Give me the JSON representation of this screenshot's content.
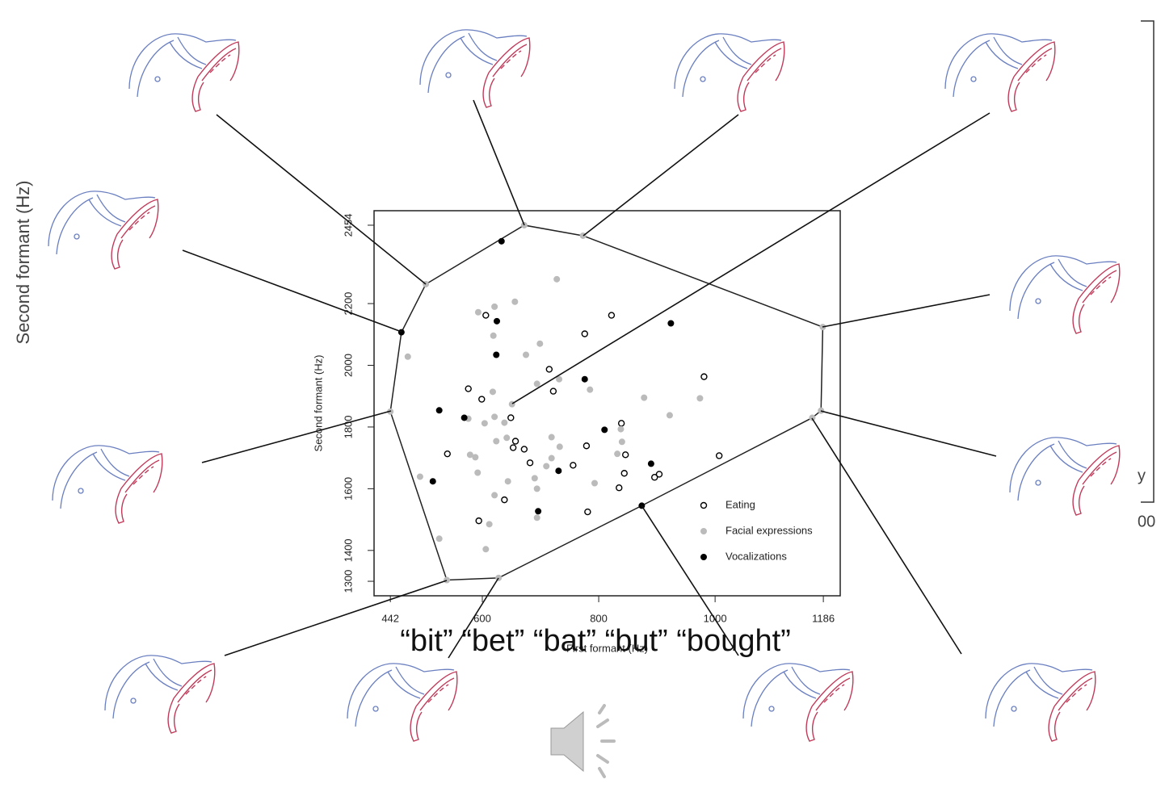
{
  "slide": {
    "background_label": "Second formant (Hz)",
    "words": "“bit” “bet” “bat” “but” “bought”",
    "fragments": [
      "y",
      "00"
    ]
  },
  "chart_data": {
    "type": "scatter",
    "x_label": "First formant (Hz)",
    "y_label": "Second formant (Hz)",
    "xlim": [
      414,
      1215
    ],
    "ylim": [
      1253,
      2501
    ],
    "xticks": [
      442,
      600,
      800,
      1000,
      1186
    ],
    "yticks": [
      1300,
      1400,
      1600,
      1800,
      2000,
      2200,
      2454
    ],
    "legend": "lower right",
    "hull": {
      "color": "#222222",
      "x": [
        503,
        672,
        773,
        1185,
        1182,
        1167,
        874,
        628,
        539,
        442,
        461,
        503
      ],
      "y": [
        2263,
        2454,
        2420,
        2124,
        1853,
        1830,
        1545,
        1311,
        1304,
        1850,
        2107,
        2263
      ]
    },
    "series": [
      {
        "name": "Eating",
        "color": "#000000",
        "marker": "open",
        "x": [
          606,
          576,
          599,
          649,
          540,
          657,
          653,
          672,
          682,
          638,
          594,
          715,
          722,
          756,
          779,
          776,
          822,
          839,
          846,
          844,
          835,
          781,
          896,
          904,
          981,
          1007
        ],
        "y": [
          2162,
          1924,
          1890,
          1830,
          1713,
          1754,
          1733,
          1728,
          1684,
          1564,
          1496,
          1987,
          1916,
          1676,
          1739,
          2102,
          2162,
          1812,
          1710,
          1650,
          1603,
          1525,
          1637,
          1647,
          1963,
          1707
        ]
      },
      {
        "name": "Facial expressions",
        "color": "#bbbbbb",
        "marker": "filled",
        "x": [
          728,
          656,
          621,
          593,
          619,
          699,
          675,
          472,
          651,
          618,
          694,
          732,
          785,
          621,
          638,
          604,
          576,
          878,
          974,
          922,
          838,
          840,
          719,
          733,
          642,
          624,
          579,
          588,
          592,
          644,
          621,
          612,
          606,
          493,
          526,
          694,
          694,
          690,
          710,
          719,
          793,
          832,
          503,
          672,
          773,
          1185,
          1182,
          1167,
          628,
          539,
          442
        ],
        "y": [
          2279,
          2206,
          2190,
          2172,
          2096,
          2070,
          2034,
          2028,
          1874,
          1914,
          1940,
          1955,
          1921,
          1833,
          1814,
          1812,
          1827,
          1895,
          1893,
          1838,
          1793,
          1752,
          1767,
          1736,
          1765,
          1754,
          1710,
          1702,
          1652,
          1624,
          1579,
          1485,
          1404,
          1639,
          1438,
          1506,
          1600,
          1634,
          1673,
          1699,
          1618,
          1713,
          2263,
          2454,
          2420,
          2124,
          1853,
          1830,
          1311,
          1304,
          1850
        ]
      },
      {
        "name": "Vocalizations",
        "color": "#000000",
        "marker": "filled",
        "x": [
          633,
          625,
          624,
          526,
          569,
          515,
          461,
          776,
          810,
          890,
          731,
          696,
          874,
          924
        ],
        "y": [
          2402,
          2143,
          2034,
          1854,
          1830,
          1624,
          2107,
          1955,
          1791,
          1681,
          1658,
          1527,
          1545,
          2136
        ]
      }
    ]
  }
}
